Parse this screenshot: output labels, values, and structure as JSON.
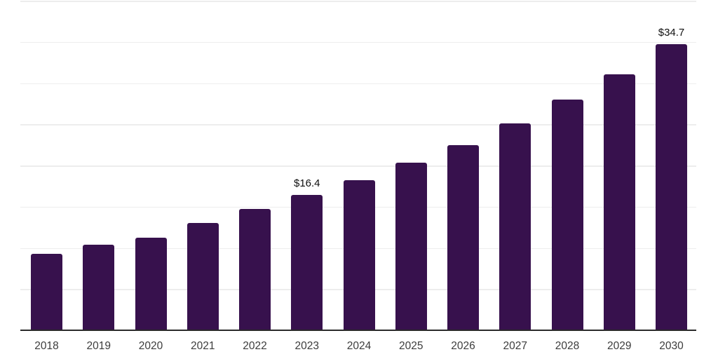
{
  "chart_data": {
    "type": "bar",
    "categories": [
      "2018",
      "2019",
      "2020",
      "2021",
      "2022",
      "2023",
      "2024",
      "2025",
      "2026",
      "2027",
      "2028",
      "2029",
      "2030"
    ],
    "values": [
      9.3,
      10.4,
      11.2,
      13.0,
      14.7,
      16.4,
      18.2,
      20.3,
      22.5,
      25.1,
      28.0,
      31.1,
      34.7
    ],
    "data_labels": {
      "2023": "$16.4",
      "2030": "$34.7"
    },
    "title": "",
    "xlabel": "",
    "ylabel": "",
    "ylim": [
      0,
      40
    ],
    "gridline_step": 5,
    "grid": true,
    "legend": false,
    "colors": {
      "bar": "#37114d",
      "gridline": "#ededed",
      "axis_line": "#2b2b2b",
      "value_label": "#0f0f0f",
      "tick_label": "#3c3c3c",
      "background": "#ffffff"
    }
  }
}
